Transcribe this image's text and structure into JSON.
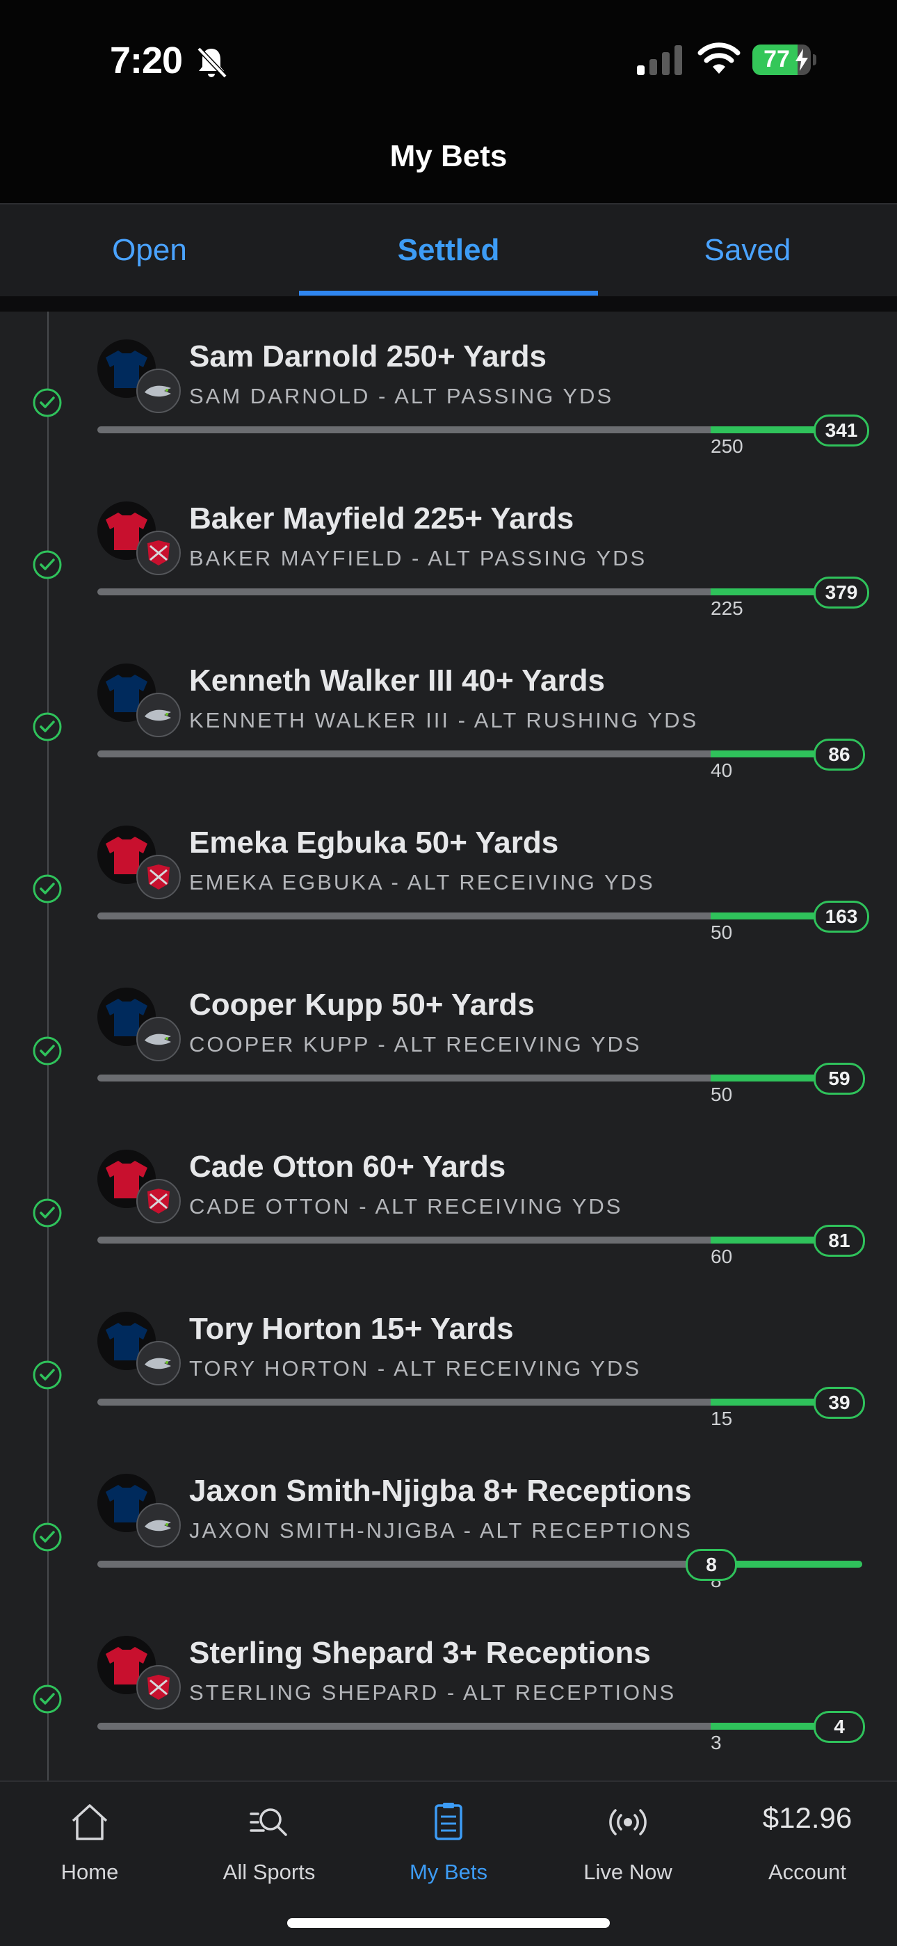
{
  "status_bar": {
    "time": "7:20",
    "battery": "77",
    "battery_level": 0.77,
    "icons": [
      "bell-slash-icon",
      "cellular-signal-icon",
      "wifi-icon",
      "battery-charging-icon"
    ]
  },
  "header": {
    "title": "My Bets"
  },
  "tabs": [
    {
      "label": "Open",
      "active": false
    },
    {
      "label": "Settled",
      "active": true
    },
    {
      "label": "Saved",
      "active": false
    }
  ],
  "colors": {
    "accent": "#3d9cf5",
    "win_green": "#2fc25b",
    "seahawks_blue": "#002a5c",
    "buccaneers_red": "#c8102e"
  },
  "bets": [
    {
      "title": "Sam Darnold 250+ Yards",
      "subtitle": "SAM DARNOLD - ALT PASSING YDS",
      "threshold": "250",
      "result": "341",
      "team": "seahawks"
    },
    {
      "title": "Baker Mayfield 225+ Yards",
      "subtitle": "BAKER MAYFIELD - ALT PASSING YDS",
      "threshold": "225",
      "result": "379",
      "team": "buccaneers"
    },
    {
      "title": "Kenneth Walker III 40+ Yards",
      "subtitle": "KENNETH WALKER III - ALT RUSHING YDS",
      "threshold": "40",
      "result": "86",
      "team": "seahawks"
    },
    {
      "title": "Emeka Egbuka 50+ Yards",
      "subtitle": "EMEKA EGBUKA - ALT RECEIVING YDS",
      "threshold": "50",
      "result": "163",
      "team": "buccaneers"
    },
    {
      "title": "Cooper Kupp 50+ Yards",
      "subtitle": "COOPER KUPP - ALT RECEIVING YDS",
      "threshold": "50",
      "result": "59",
      "team": "seahawks"
    },
    {
      "title": "Cade Otton 60+ Yards",
      "subtitle": "CADE OTTON - ALT RECEIVING YDS",
      "threshold": "60",
      "result": "81",
      "team": "buccaneers"
    },
    {
      "title": "Tory Horton 15+ Yards",
      "subtitle": "TORY HORTON - ALT RECEIVING YDS",
      "threshold": "15",
      "result": "39",
      "team": "seahawks"
    },
    {
      "title": "Jaxon Smith-Njigba 8+ Receptions",
      "subtitle": "JAXON SMITH-NJIGBA - ALT RECEPTIONS",
      "threshold": "8",
      "result": "8",
      "team": "seahawks"
    },
    {
      "title": "Sterling Shepard 3+ Receptions",
      "subtitle": "STERLING SHEPARD - ALT RECEPTIONS",
      "threshold": "3",
      "result": "4",
      "team": "buccaneers"
    }
  ],
  "bottom_nav": {
    "items": [
      {
        "label": "Home",
        "icon": "home-icon"
      },
      {
        "label": "All Sports",
        "icon": "search-icon"
      },
      {
        "label": "My Bets",
        "icon": "bet-slip-icon",
        "active": true
      },
      {
        "label": "Live Now",
        "icon": "live-broadcast-icon"
      }
    ],
    "account_amount": "$12.96",
    "account_label": "Account"
  }
}
